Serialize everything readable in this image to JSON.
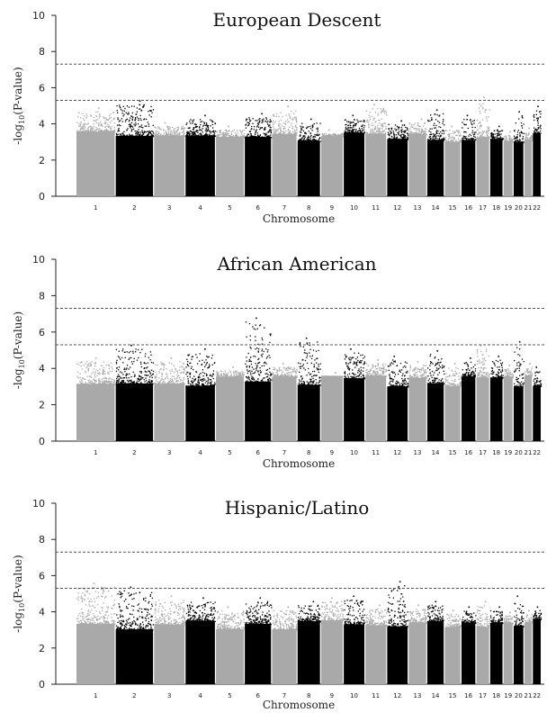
{
  "colors": {
    "light": "#a9a9a9",
    "dark": "#000000",
    "axis": "#222222",
    "threshold": "#555555"
  },
  "chart_data": [
    {
      "type": "scatter",
      "subtype": "manhattan",
      "title": "European Descent",
      "xlabel": "Chromosome",
      "ylabel": "-log10(P-value)",
      "ylim": [
        0,
        10
      ],
      "yticks": [
        0,
        2,
        4,
        6,
        8,
        10
      ],
      "thresholds": [
        7.3,
        5.3
      ],
      "chromosomes": [
        {
          "label": "1",
          "peak": 4.9
        },
        {
          "label": "2",
          "peak": 5.3
        },
        {
          "label": "3",
          "peak": 4.1
        },
        {
          "label": "4",
          "peak": 4.5
        },
        {
          "label": "5",
          "peak": 3.9
        },
        {
          "label": "6",
          "peak": 4.6
        },
        {
          "label": "7",
          "peak": 5.0
        },
        {
          "label": "8",
          "peak": 4.3
        },
        {
          "label": "9",
          "peak": 3.7
        },
        {
          "label": "10",
          "peak": 4.5
        },
        {
          "label": "11",
          "peak": 5.1
        },
        {
          "label": "12",
          "peak": 4.2
        },
        {
          "label": "13",
          "peak": 4.3
        },
        {
          "label": "14",
          "peak": 4.8
        },
        {
          "label": "15",
          "peak": 3.9
        },
        {
          "label": "16",
          "peak": 4.5
        },
        {
          "label": "17",
          "peak": 5.5
        },
        {
          "label": "18",
          "peak": 3.9
        },
        {
          "label": "19",
          "peak": 3.6
        },
        {
          "label": "20",
          "peak": 4.7
        },
        {
          "label": "21",
          "peak": 3.8
        },
        {
          "label": "22",
          "peak": 5.0
        }
      ]
    },
    {
      "type": "scatter",
      "subtype": "manhattan",
      "title": "African American",
      "xlabel": "Chromosome",
      "ylabel": "-log10(P-value)",
      "ylim": [
        0,
        10
      ],
      "yticks": [
        0,
        2,
        4,
        6,
        8,
        10
      ],
      "thresholds": [
        7.3,
        5.3
      ],
      "chromosomes": [
        {
          "label": "1",
          "peak": 4.6
        },
        {
          "label": "2",
          "peak": 5.3
        },
        {
          "label": "3",
          "peak": 4.6
        },
        {
          "label": "4",
          "peak": 5.1
        },
        {
          "label": "5",
          "peak": 4.1
        },
        {
          "label": "6",
          "peak": 6.8
        },
        {
          "label": "7",
          "peak": 4.3
        },
        {
          "label": "8",
          "peak": 5.7
        },
        {
          "label": "9",
          "peak": 3.8
        },
        {
          "label": "10",
          "peak": 5.1
        },
        {
          "label": "11",
          "peak": 4.5
        },
        {
          "label": "12",
          "peak": 4.7
        },
        {
          "label": "13",
          "peak": 4.4
        },
        {
          "label": "14",
          "peak": 5.0
        },
        {
          "label": "15",
          "peak": 4.3
        },
        {
          "label": "16",
          "peak": 4.6
        },
        {
          "label": "17",
          "peak": 5.3
        },
        {
          "label": "18",
          "peak": 4.7
        },
        {
          "label": "19",
          "peak": 4.2
        },
        {
          "label": "20",
          "peak": 5.5
        },
        {
          "label": "21",
          "peak": 4.3
        },
        {
          "label": "22",
          "peak": 4.1
        }
      ]
    },
    {
      "type": "scatter",
      "subtype": "manhattan",
      "title": "Hispanic/Latino",
      "xlabel": "Chromosome",
      "ylabel": "-log10(P-value)",
      "ylim": [
        0,
        10
      ],
      "yticks": [
        0,
        2,
        4,
        6,
        8,
        10
      ],
      "thresholds": [
        7.3,
        5.3
      ],
      "chromosomes": [
        {
          "label": "1",
          "peak": 5.6
        },
        {
          "label": "2",
          "peak": 5.4
        },
        {
          "label": "3",
          "peak": 4.9
        },
        {
          "label": "4",
          "peak": 4.8
        },
        {
          "label": "5",
          "peak": 4.3
        },
        {
          "label": "6",
          "peak": 4.8
        },
        {
          "label": "7",
          "peak": 4.3
        },
        {
          "label": "8",
          "peak": 4.6
        },
        {
          "label": "9",
          "peak": 4.8
        },
        {
          "label": "10",
          "peak": 4.9
        },
        {
          "label": "11",
          "peak": 4.4
        },
        {
          "label": "12",
          "peak": 5.7
        },
        {
          "label": "13",
          "peak": 4.4
        },
        {
          "label": "14",
          "peak": 4.6
        },
        {
          "label": "15",
          "peak": 4.1
        },
        {
          "label": "16",
          "peak": 4.3
        },
        {
          "label": "17",
          "peak": 4.6
        },
        {
          "label": "18",
          "peak": 4.3
        },
        {
          "label": "19",
          "peak": 4.0
        },
        {
          "label": "20",
          "peak": 4.9
        },
        {
          "label": "21",
          "peak": 4.1
        },
        {
          "label": "22",
          "peak": 4.3
        }
      ]
    }
  ]
}
